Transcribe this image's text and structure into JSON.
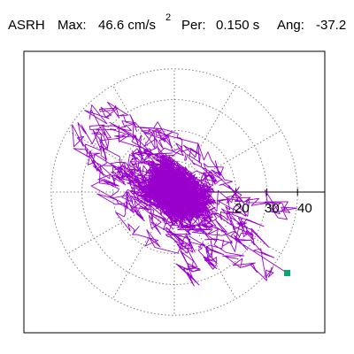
{
  "header": {
    "station": "ASRH",
    "max_label": "Max:",
    "max_value": "46.6 cm/s",
    "max_exponent": "2",
    "per_label": "Per:",
    "per_value": "0.150 s",
    "ang_label": "Ang:",
    "ang_value": "-37.2"
  },
  "plot": {
    "ring_labels": [
      "20",
      "30",
      "40"
    ],
    "ring_values": [
      10,
      20,
      30,
      40
    ],
    "radial_angles_deg": [
      0,
      30,
      60,
      90,
      120,
      150,
      180,
      210,
      240,
      270,
      300,
      330
    ],
    "max_radius": 46.6,
    "direction_angle_deg": -37.2,
    "colors": {
      "trace": "#9900cc",
      "marker": "#00aa66",
      "grid": "#808080",
      "axis": "#000000"
    }
  }
}
